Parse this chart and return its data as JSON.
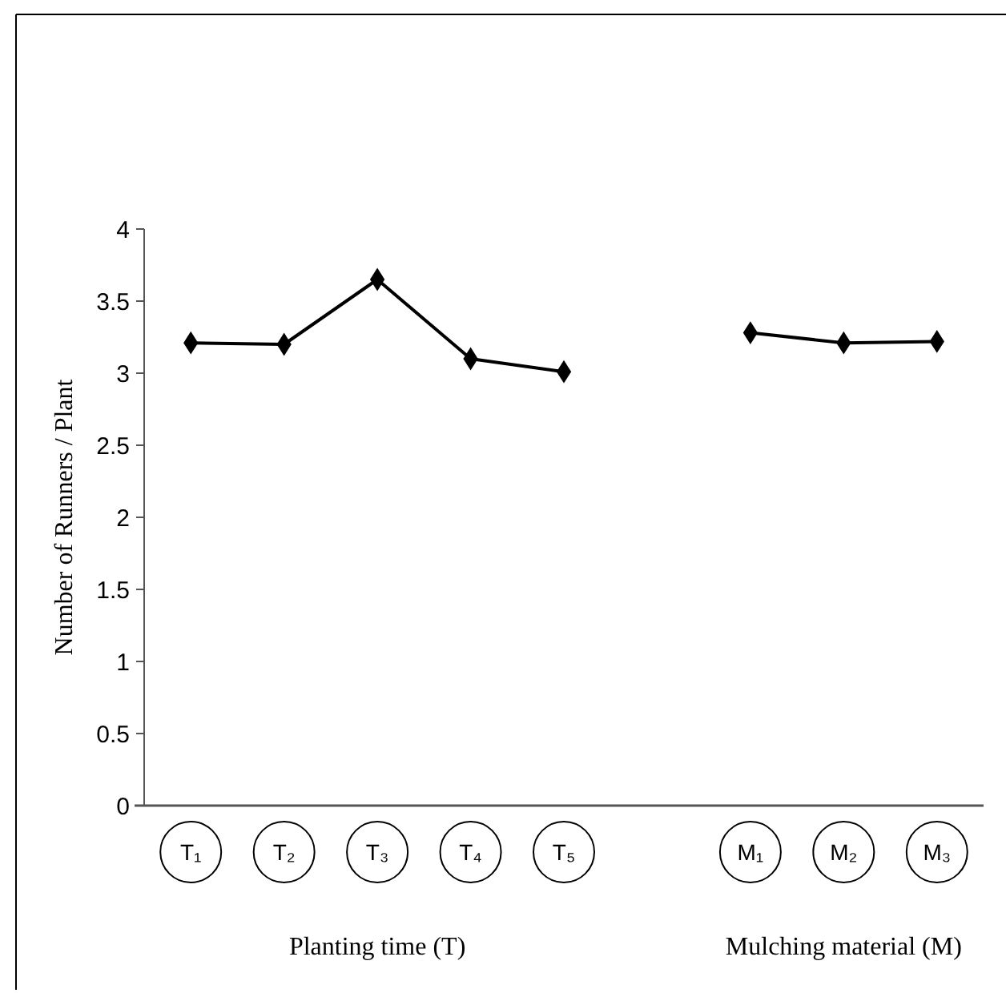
{
  "chart_data": {
    "type": "line",
    "ylabel": "Number of Runners / Plant",
    "categories": [
      "T₁",
      "T₂",
      "T₃",
      "T₄",
      "T₅",
      null,
      "M₁",
      "M₂",
      "M₃"
    ],
    "series": [
      {
        "color": "#000000",
        "values": [
          3.21,
          3.2,
          3.65,
          3.1,
          3.01,
          null,
          null,
          null,
          null
        ]
      },
      {
        "color": "#000000",
        "values": [
          null,
          null,
          null,
          null,
          null,
          null,
          3.28,
          3.21,
          3.22
        ]
      }
    ],
    "ylim": [
      0,
      4
    ],
    "yticks": [
      0,
      0.5,
      1,
      1.5,
      2,
      2.5,
      3,
      3.5,
      4
    ],
    "grid": false,
    "marker": "diamond",
    "line_style": "solid",
    "annotations": [
      "Planting time (T)",
      "Mulching material (M)"
    ]
  }
}
